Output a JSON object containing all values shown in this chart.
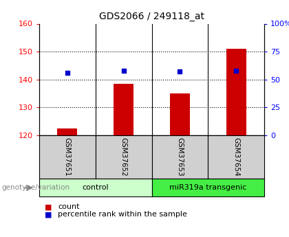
{
  "title": "GDS2066 / 249118_at",
  "samples": [
    "GSM37651",
    "GSM37652",
    "GSM37653",
    "GSM37654"
  ],
  "counts": [
    122.5,
    138.5,
    135.0,
    151.0
  ],
  "percentiles": [
    56,
    58,
    57,
    58
  ],
  "ylim_left": [
    120,
    160
  ],
  "ylim_right": [
    0,
    100
  ],
  "yticks_left": [
    120,
    130,
    140,
    150,
    160
  ],
  "yticks_right": [
    0,
    25,
    50,
    75,
    100
  ],
  "ytick_labels_right": [
    "0",
    "25",
    "50",
    "75",
    "100%"
  ],
  "bar_color": "#cc0000",
  "dot_color": "#0000cc",
  "bar_width": 0.35,
  "groups": [
    {
      "label": "control",
      "samples": [
        0,
        1
      ],
      "color": "#ccffcc"
    },
    {
      "label": "miR319a transgenic",
      "samples": [
        2,
        3
      ],
      "color": "#44ee44"
    }
  ],
  "genotype_label": "genotype/variation",
  "legend_count_label": "count",
  "legend_percentile_label": "percentile rank within the sample",
  "background_color": "#ffffff",
  "sample_box_color": "#d0d0d0"
}
